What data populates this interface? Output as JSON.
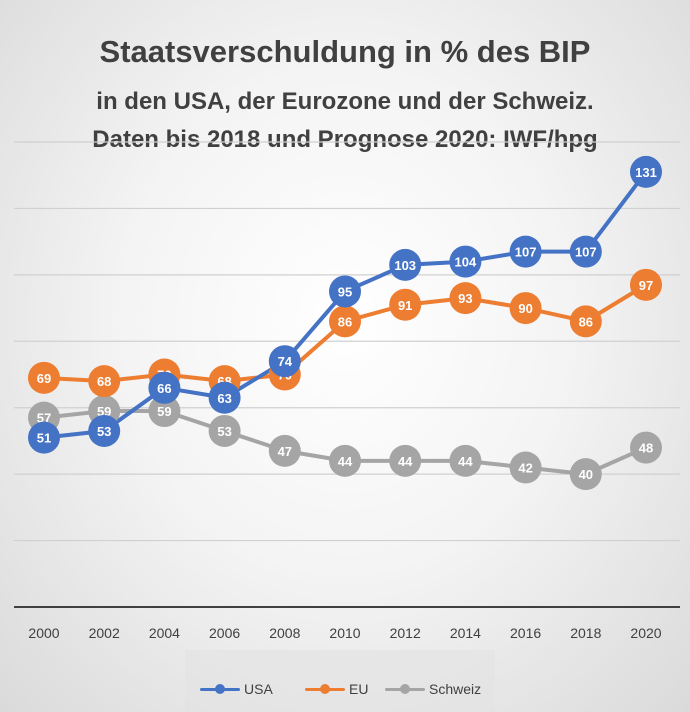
{
  "chart_data": {
    "type": "line",
    "title": "Staatsverschuldung in % des BIP",
    "subtitle_line1": "in  den USA, der Eurozone und der Schweiz.",
    "subtitle_line2": "Daten bis 2018 und Prognose 2020: IWF/hpg",
    "xlabel": "",
    "ylabel": "",
    "x": [
      "2000",
      "2002",
      "2004",
      "2006",
      "2008",
      "2010",
      "2012",
      "2014",
      "2016",
      "2018",
      "2020"
    ],
    "ylim": [
      0,
      140
    ],
    "grid": true,
    "legend_position": "bottom",
    "series": [
      {
        "name": "USA",
        "color": "#4472C4",
        "values": [
          51,
          53,
          66,
          63,
          74,
          95,
          103,
          104,
          107,
          107,
          131
        ]
      },
      {
        "name": "EU",
        "color": "#ED7D31",
        "values": [
          69,
          68,
          70,
          68,
          70,
          86,
          91,
          93,
          90,
          86,
          97
        ]
      },
      {
        "name": "Schweiz",
        "color": "#A5A5A5",
        "values": [
          57,
          59,
          59,
          53,
          47,
          44,
          44,
          44,
          42,
          40,
          48
        ]
      }
    ]
  }
}
